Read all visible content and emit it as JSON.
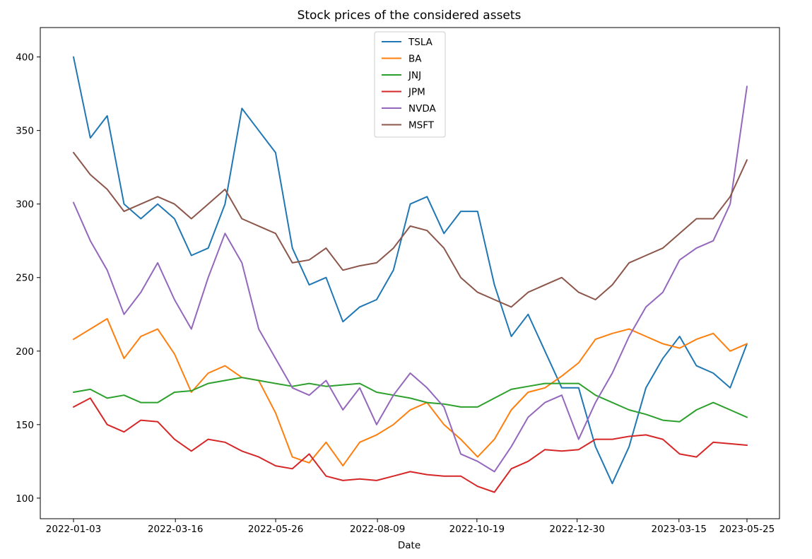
{
  "chart_data": {
    "type": "line",
    "title": "Stock prices of the considered assets",
    "xlabel": "Date",
    "ylabel": "",
    "ylim": [
      86,
      420
    ],
    "x_range": [
      0,
      1
    ],
    "grid": false,
    "legend_position": "top-center",
    "x_ticks": [
      {
        "label": "2022-01-03",
        "pos": 0.0
      },
      {
        "label": "2022-03-16",
        "pos": 0.1513
      },
      {
        "label": "2022-05-26",
        "pos": 0.3002
      },
      {
        "label": "2022-08-09",
        "pos": 0.4513
      },
      {
        "label": "2022-10-19",
        "pos": 0.599
      },
      {
        "label": "2022-12-30",
        "pos": 0.7478
      },
      {
        "label": "2023-03-15",
        "pos": 0.899
      },
      {
        "label": "2023-05-25",
        "pos": 1.0
      }
    ],
    "y_ticks": [
      100,
      150,
      200,
      250,
      300,
      350,
      400
    ],
    "x_grid": [
      0,
      0.025,
      0.05,
      0.075,
      0.1,
      0.125,
      0.15,
      0.175,
      0.2,
      0.225,
      0.25,
      0.275,
      0.3,
      0.325,
      0.35,
      0.375,
      0.4,
      0.425,
      0.45,
      0.475,
      0.5,
      0.525,
      0.55,
      0.575,
      0.6,
      0.625,
      0.65,
      0.675,
      0.7,
      0.725,
      0.75,
      0.775,
      0.8,
      0.825,
      0.85,
      0.875,
      0.9,
      0.925,
      0.95,
      0.975,
      1.0
    ],
    "series": [
      {
        "name": "TSLA",
        "color": "#1f77b4",
        "values": [
          400,
          345,
          360,
          300,
          290,
          300,
          290,
          265,
          270,
          300,
          365,
          350,
          335,
          270,
          245,
          250,
          220,
          230,
          235,
          255,
          300,
          305,
          280,
          295,
          295,
          245,
          210,
          225,
          200,
          175,
          175,
          135,
          110,
          135,
          175,
          195,
          210,
          190,
          185,
          175,
          205
        ]
      },
      {
        "name": "BA",
        "color": "#ff7f0e",
        "values": [
          208,
          215,
          222,
          195,
          210,
          215,
          198,
          172,
          185,
          190,
          182,
          180,
          158,
          128,
          124,
          138,
          122,
          138,
          143,
          150,
          160,
          165,
          150,
          140,
          128,
          140,
          160,
          172,
          175,
          183,
          192,
          208,
          212,
          215,
          210,
          205,
          202,
          208,
          212,
          200,
          205
        ]
      },
      {
        "name": "JNJ",
        "color": "#2ca02c",
        "values": [
          172,
          174,
          168,
          170,
          165,
          165,
          172,
          173,
          178,
          180,
          182,
          180,
          178,
          176,
          178,
          176,
          177,
          178,
          172,
          170,
          168,
          165,
          164,
          162,
          162,
          168,
          174,
          176,
          178,
          178,
          178,
          170,
          165,
          160,
          157,
          153,
          152,
          160,
          165,
          160,
          155
        ]
      },
      {
        "name": "JPM",
        "color": "#d62728",
        "values": [
          162,
          168,
          150,
          145,
          153,
          152,
          140,
          132,
          140,
          138,
          132,
          128,
          122,
          120,
          130,
          115,
          112,
          113,
          112,
          115,
          118,
          116,
          115,
          115,
          108,
          104,
          120,
          125,
          133,
          132,
          133,
          140,
          140,
          142,
          143,
          140,
          130,
          128,
          138,
          137,
          136
        ]
      },
      {
        "name": "NVDA",
        "color": "#9467bd",
        "values": [
          301,
          275,
          255,
          225,
          240,
          260,
          235,
          215,
          250,
          280,
          260,
          215,
          195,
          175,
          170,
          180,
          160,
          175,
          150,
          170,
          185,
          175,
          162,
          130,
          125,
          118,
          135,
          155,
          165,
          170,
          140,
          165,
          185,
          210,
          230,
          240,
          262,
          270,
          275,
          300,
          380
        ]
      },
      {
        "name": "MSFT",
        "color": "#8c564b",
        "values": [
          335,
          320,
          310,
          295,
          300,
          305,
          300,
          290,
          300,
          310,
          290,
          285,
          280,
          260,
          262,
          270,
          255,
          258,
          260,
          270,
          285,
          282,
          270,
          250,
          240,
          235,
          230,
          240,
          245,
          250,
          240,
          235,
          245,
          260,
          265,
          270,
          280,
          290,
          290,
          305,
          330
        ]
      }
    ]
  }
}
